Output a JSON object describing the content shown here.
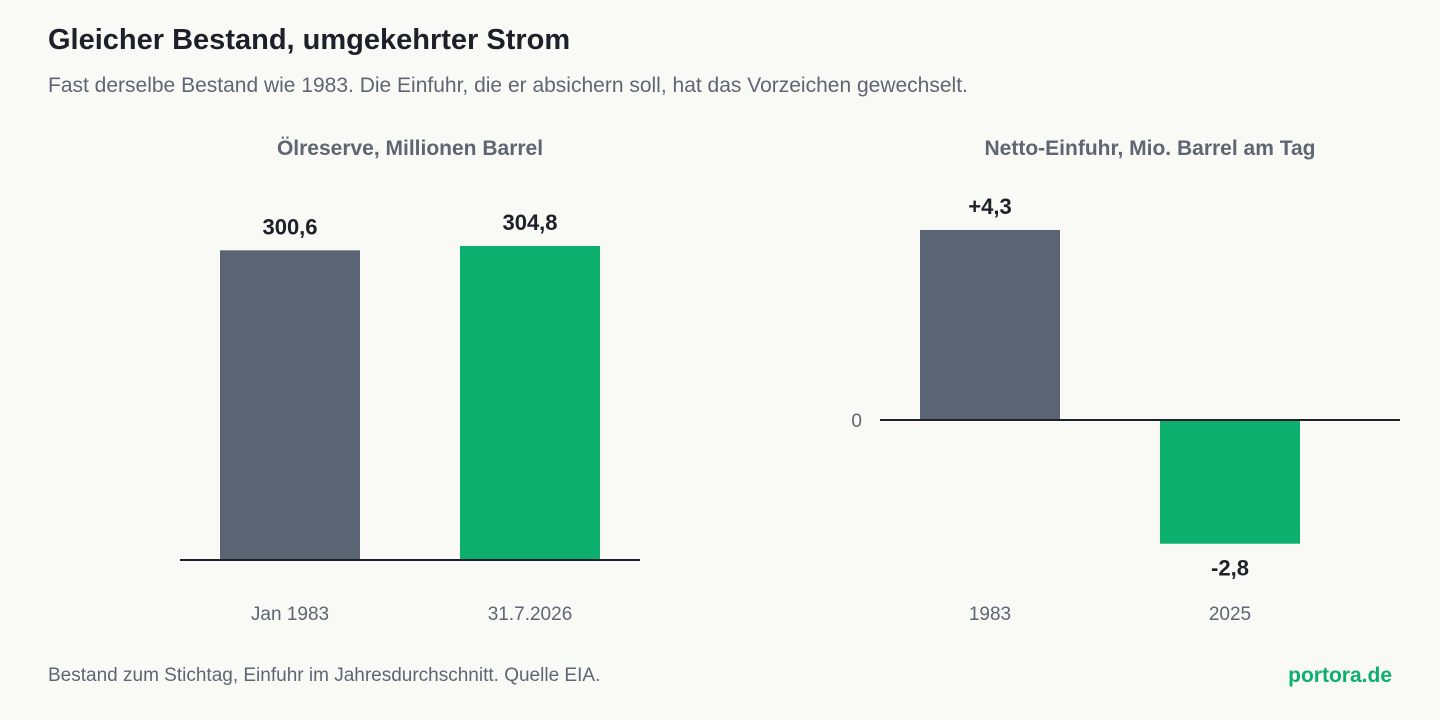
{
  "header": {
    "title": "Gleicher Bestand, umgekehrter Strom",
    "subtitle": "Fast derselbe Bestand wie 1983. Die Einfuhr, die er absichern soll, hat das Vorzeichen gewechselt."
  },
  "footer": {
    "note": "Bestand zum Stichtag, Einfuhr im Jahresdurchschnitt. Quelle EIA.",
    "brand": "portora.de"
  },
  "colors": {
    "old": "#5a6472",
    "new": "#0daf6e",
    "axis": "#1d2028",
    "brand": "#0daf6e"
  },
  "chart_data": [
    {
      "type": "bar",
      "title": "Ölreserve, Millionen Barrel",
      "categories": [
        "Jan 1983",
        "31.7.2026"
      ],
      "values": [
        300.6,
        304.8
      ],
      "value_labels": [
        "300,6",
        "304,8"
      ],
      "ylim": [
        0,
        304.8
      ],
      "grid": false,
      "legend": "none"
    },
    {
      "type": "bar",
      "title": "Netto-Einfuhr, Mio. Barrel am Tag",
      "categories": [
        "1983",
        "2025"
      ],
      "values": [
        4.3,
        -2.8
      ],
      "value_labels": [
        "+4,3",
        "-2,8"
      ],
      "zero_tick": "0",
      "ylim": [
        -2.8,
        4.3
      ],
      "grid": false,
      "legend": "none"
    }
  ]
}
